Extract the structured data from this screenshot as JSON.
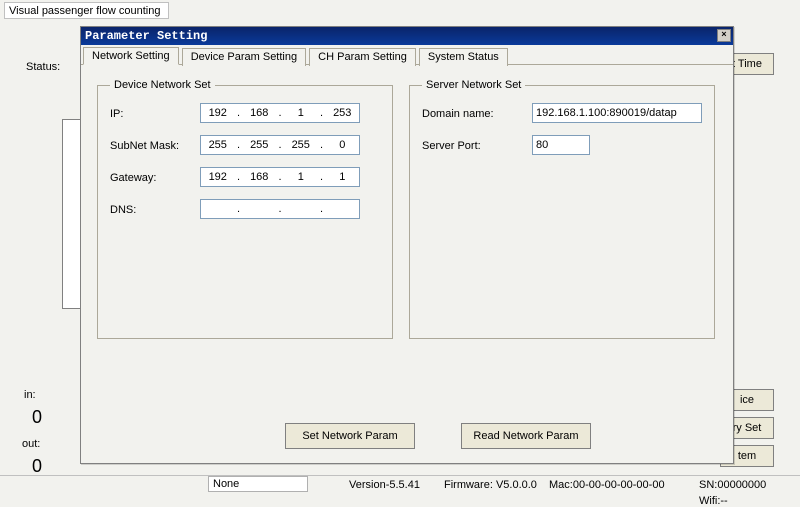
{
  "app_title": "Visual passenger flow counting client",
  "bg": {
    "status_label": "Status:",
    "ttime_btn": "t Time",
    "in_label": "in:",
    "in_value": "0",
    "out_label": "out:",
    "out_value": "0",
    "side_buttons": {
      "b1": "ice",
      "b2": "ry Set",
      "b3": "tem"
    }
  },
  "statusbar": {
    "none": "None",
    "version": "Version-5.5.41",
    "firmware": "Firmware: V5.0.0.0",
    "mac": "Mac:00-00-00-00-00-00",
    "sn": "SN:00000000",
    "wifi": "Wifi:--"
  },
  "dialog": {
    "title": "Parameter Setting",
    "close_glyph": "×",
    "tabs": {
      "network": "Network Setting",
      "device_param": "Device Param Setting",
      "ch_param": "CH Param Setting",
      "system_status": "System Status"
    },
    "device_group_legend": "Device Network Set",
    "server_group_legend": "Server Network Set",
    "labels": {
      "ip": "IP:",
      "subnet": "SubNet Mask:",
      "gateway": "Gateway:",
      "dns": "DNS:",
      "domain": "Domain name:",
      "server_port": "Server Port:"
    },
    "values": {
      "ip": [
        "192",
        "168",
        "1",
        "253"
      ],
      "subnet": [
        "255",
        "255",
        "255",
        "0"
      ],
      "gateway": [
        "192",
        "168",
        "1",
        "1"
      ],
      "dns": [
        "",
        "",
        "",
        ""
      ],
      "domain": "192.168.1.100:890019/datap",
      "server_port": "80"
    },
    "buttons": {
      "set": "Set Network Param",
      "read": "Read Network Param"
    }
  },
  "colors": {
    "window_bg": "#f2f2ee",
    "titlebar_grad_from": "#0a246a",
    "titlebar_grad_to": "#0a3a9a",
    "border_group": "#aca899",
    "input_border": "#7f9db9",
    "button_face": "#ece9d8"
  }
}
